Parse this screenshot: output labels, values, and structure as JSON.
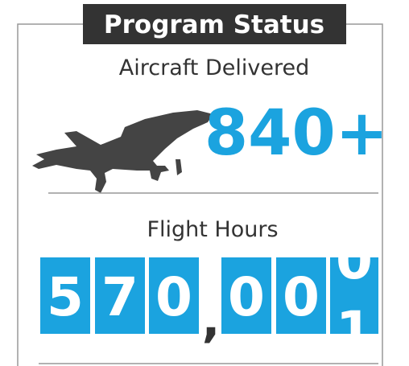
{
  "header": {
    "title": "Program Status"
  },
  "delivered": {
    "label": "Aircraft Delivered",
    "value": "840+"
  },
  "hours": {
    "label": "Flight Hours",
    "digits": [
      "5",
      "7",
      "0",
      "0",
      "0"
    ],
    "separator": ",",
    "rolling": [
      "0",
      "1"
    ]
  }
}
